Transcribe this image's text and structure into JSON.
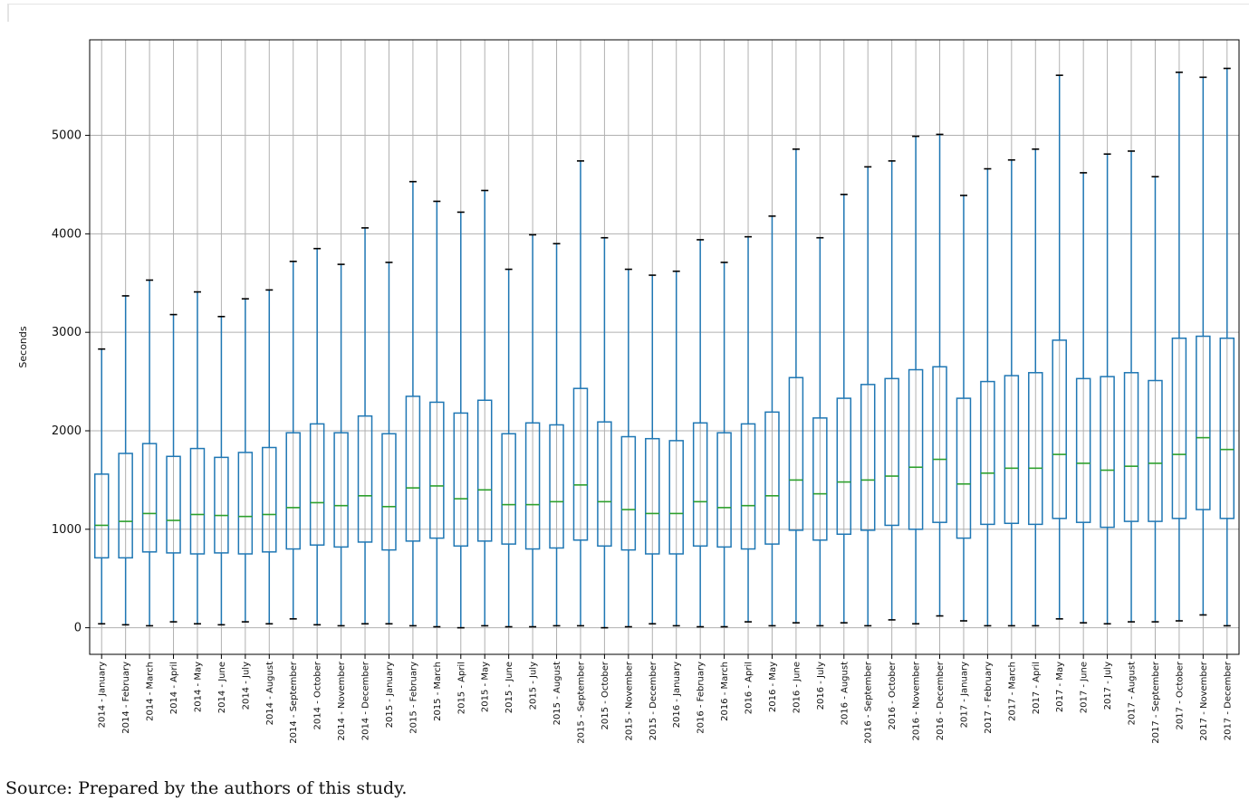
{
  "chart_data": {
    "type": "boxplot",
    "title": "",
    "xlabel": "",
    "ylabel": "Seconds",
    "ylim": [
      -270,
      5970
    ],
    "yticks": [
      0,
      1000,
      2000,
      3000,
      4000,
      5000
    ],
    "grid": true,
    "colors": {
      "box": "#1f77b4",
      "median": "#2ca02c",
      "grid": "#b0b0b0",
      "frame": "#000000"
    },
    "categories": [
      "2014 - January",
      "2014 - February",
      "2014 - March",
      "2014 - April",
      "2014 - May",
      "2014 - June",
      "2014 - July",
      "2014 - August",
      "2014 - September",
      "2014 - October",
      "2014 - November",
      "2014 - December",
      "2015 - January",
      "2015 - February",
      "2015 - March",
      "2015 - April",
      "2015 - May",
      "2015 - June",
      "2015 - July",
      "2015 - August",
      "2015 - September",
      "2015 - October",
      "2015 - November",
      "2015 - December",
      "2016 - January",
      "2016 - February",
      "2016 - March",
      "2016 - April",
      "2016 - May",
      "2016 - June",
      "2016 - July",
      "2016 - August",
      "2016 - September",
      "2016 - October",
      "2016 - November",
      "2016 - December",
      "2017 - January",
      "2017 - February",
      "2017 - March",
      "2017 - April",
      "2017 - May",
      "2017 - June",
      "2017 - July",
      "2017 - August",
      "2017 - September",
      "2017 - October",
      "2017 - November",
      "2017 - December"
    ],
    "boxes": [
      {
        "whislo": 40,
        "q1": 710,
        "med": 1040,
        "q3": 1560,
        "whishi": 2830
      },
      {
        "whislo": 30,
        "q1": 710,
        "med": 1080,
        "q3": 1770,
        "whishi": 3370
      },
      {
        "whislo": 20,
        "q1": 770,
        "med": 1160,
        "q3": 1870,
        "whishi": 3530
      },
      {
        "whislo": 60,
        "q1": 760,
        "med": 1090,
        "q3": 1740,
        "whishi": 3180
      },
      {
        "whislo": 40,
        "q1": 750,
        "med": 1150,
        "q3": 1820,
        "whishi": 3410
      },
      {
        "whislo": 30,
        "q1": 760,
        "med": 1140,
        "q3": 1730,
        "whishi": 3160
      },
      {
        "whislo": 60,
        "q1": 750,
        "med": 1130,
        "q3": 1780,
        "whishi": 3340
      },
      {
        "whislo": 40,
        "q1": 770,
        "med": 1150,
        "q3": 1830,
        "whishi": 3430
      },
      {
        "whislo": 90,
        "q1": 800,
        "med": 1220,
        "q3": 1980,
        "whishi": 3720
      },
      {
        "whislo": 30,
        "q1": 840,
        "med": 1270,
        "q3": 2070,
        "whishi": 3850
      },
      {
        "whislo": 20,
        "q1": 820,
        "med": 1240,
        "q3": 1980,
        "whishi": 3690
      },
      {
        "whislo": 40,
        "q1": 870,
        "med": 1340,
        "q3": 2150,
        "whishi": 4060
      },
      {
        "whislo": 40,
        "q1": 790,
        "med": 1230,
        "q3": 1970,
        "whishi": 3710
      },
      {
        "whislo": 20,
        "q1": 880,
        "med": 1420,
        "q3": 2350,
        "whishi": 4530
      },
      {
        "whislo": 10,
        "q1": 910,
        "med": 1440,
        "q3": 2290,
        "whishi": 4330
      },
      {
        "whislo": 0,
        "q1": 830,
        "med": 1310,
        "q3": 2180,
        "whishi": 4220
      },
      {
        "whislo": 20,
        "q1": 880,
        "med": 1400,
        "q3": 2310,
        "whishi": 4440
      },
      {
        "whislo": 10,
        "q1": 850,
        "med": 1250,
        "q3": 1970,
        "whishi": 3640
      },
      {
        "whislo": 10,
        "q1": 800,
        "med": 1250,
        "q3": 2080,
        "whishi": 3990
      },
      {
        "whislo": 20,
        "q1": 810,
        "med": 1280,
        "q3": 2060,
        "whishi": 3900
      },
      {
        "whislo": 20,
        "q1": 890,
        "med": 1450,
        "q3": 2430,
        "whishi": 4740
      },
      {
        "whislo": 0,
        "q1": 830,
        "med": 1280,
        "q3": 2090,
        "whishi": 3960
      },
      {
        "whislo": 10,
        "q1": 790,
        "med": 1200,
        "q3": 1940,
        "whishi": 3640
      },
      {
        "whislo": 40,
        "q1": 750,
        "med": 1160,
        "q3": 1920,
        "whishi": 3580
      },
      {
        "whislo": 20,
        "q1": 750,
        "med": 1160,
        "q3": 1900,
        "whishi": 3620
      },
      {
        "whislo": 10,
        "q1": 830,
        "med": 1280,
        "q3": 2080,
        "whishi": 3940
      },
      {
        "whislo": 10,
        "q1": 820,
        "med": 1220,
        "q3": 1980,
        "whishi": 3710
      },
      {
        "whislo": 60,
        "q1": 800,
        "med": 1240,
        "q3": 2070,
        "whishi": 3970
      },
      {
        "whislo": 20,
        "q1": 850,
        "med": 1340,
        "q3": 2190,
        "whishi": 4180
      },
      {
        "whislo": 50,
        "q1": 990,
        "med": 1500,
        "q3": 2540,
        "whishi": 4860
      },
      {
        "whislo": 20,
        "q1": 890,
        "med": 1360,
        "q3": 2130,
        "whishi": 3960
      },
      {
        "whislo": 50,
        "q1": 950,
        "med": 1480,
        "q3": 2330,
        "whishi": 4400
      },
      {
        "whislo": 20,
        "q1": 990,
        "med": 1500,
        "q3": 2470,
        "whishi": 4680
      },
      {
        "whislo": 80,
        "q1": 1040,
        "med": 1540,
        "q3": 2530,
        "whishi": 4740
      },
      {
        "whislo": 40,
        "q1": 1000,
        "med": 1630,
        "q3": 2620,
        "whishi": 4990
      },
      {
        "whislo": 120,
        "q1": 1070,
        "med": 1710,
        "q3": 2650,
        "whishi": 5010
      },
      {
        "whislo": 70,
        "q1": 910,
        "med": 1460,
        "q3": 2330,
        "whishi": 4390
      },
      {
        "whislo": 20,
        "q1": 1050,
        "med": 1570,
        "q3": 2500,
        "whishi": 4660
      },
      {
        "whislo": 20,
        "q1": 1060,
        "med": 1620,
        "q3": 2560,
        "whishi": 4750
      },
      {
        "whislo": 20,
        "q1": 1050,
        "med": 1620,
        "q3": 2590,
        "whishi": 4860
      },
      {
        "whislo": 90,
        "q1": 1110,
        "med": 1760,
        "q3": 2920,
        "whishi": 5610
      },
      {
        "whislo": 50,
        "q1": 1070,
        "med": 1670,
        "q3": 2530,
        "whishi": 4620
      },
      {
        "whislo": 40,
        "q1": 1020,
        "med": 1600,
        "q3": 2550,
        "whishi": 4810
      },
      {
        "whislo": 60,
        "q1": 1080,
        "med": 1640,
        "q3": 2590,
        "whishi": 4840
      },
      {
        "whislo": 60,
        "q1": 1080,
        "med": 1670,
        "q3": 2510,
        "whishi": 4580
      },
      {
        "whislo": 70,
        "q1": 1110,
        "med": 1760,
        "q3": 2940,
        "whishi": 5640
      },
      {
        "whislo": 130,
        "q1": 1200,
        "med": 1930,
        "q3": 2960,
        "whishi": 5590
      },
      {
        "whislo": 20,
        "q1": 1110,
        "med": 1810,
        "q3": 2940,
        "whishi": 5680
      }
    ]
  },
  "source": "Source: Prepared by the authors of this study."
}
